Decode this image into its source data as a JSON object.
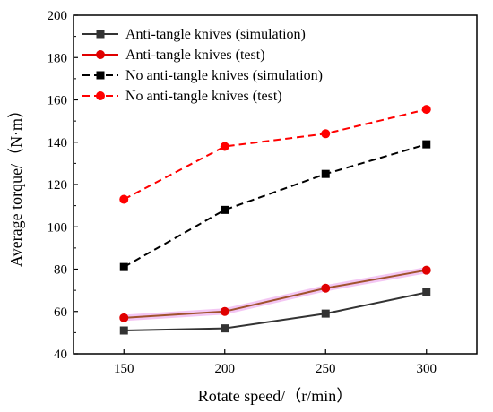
{
  "chart_data": {
    "type": "line",
    "title": "",
    "xlabel": "Rotate speed/（r/min）",
    "ylabel": "Average torque/（N·m）",
    "x": [
      150,
      200,
      250,
      300
    ],
    "xlim": [
      125,
      325
    ],
    "ylim": [
      40,
      200
    ],
    "xticks": [
      150,
      200,
      250,
      300
    ],
    "yticks": [
      40,
      60,
      80,
      100,
      120,
      140,
      160,
      180,
      200
    ],
    "grid": false,
    "legend_position": "top-left",
    "series": [
      {
        "name": "Anti-tangle knives (simulation)",
        "values": [
          51,
          52,
          59,
          69
        ],
        "color": "#333333",
        "marker": "square",
        "dash": "solid"
      },
      {
        "name": "Anti-tangle knives (test)",
        "values": [
          57,
          60,
          71,
          79.5
        ],
        "color": "#e00000",
        "marker": "circle",
        "dash": "solid"
      },
      {
        "name": "No anti-tangle knives (simulation)",
        "values": [
          81,
          108,
          125,
          139
        ],
        "color": "#000000",
        "marker": "square",
        "dash": "dashed"
      },
      {
        "name": "No anti-tangle knives (test)",
        "values": [
          113,
          138,
          144,
          155.5
        ],
        "color": "#ff0000",
        "marker": "circle",
        "dash": "dashed"
      }
    ]
  }
}
